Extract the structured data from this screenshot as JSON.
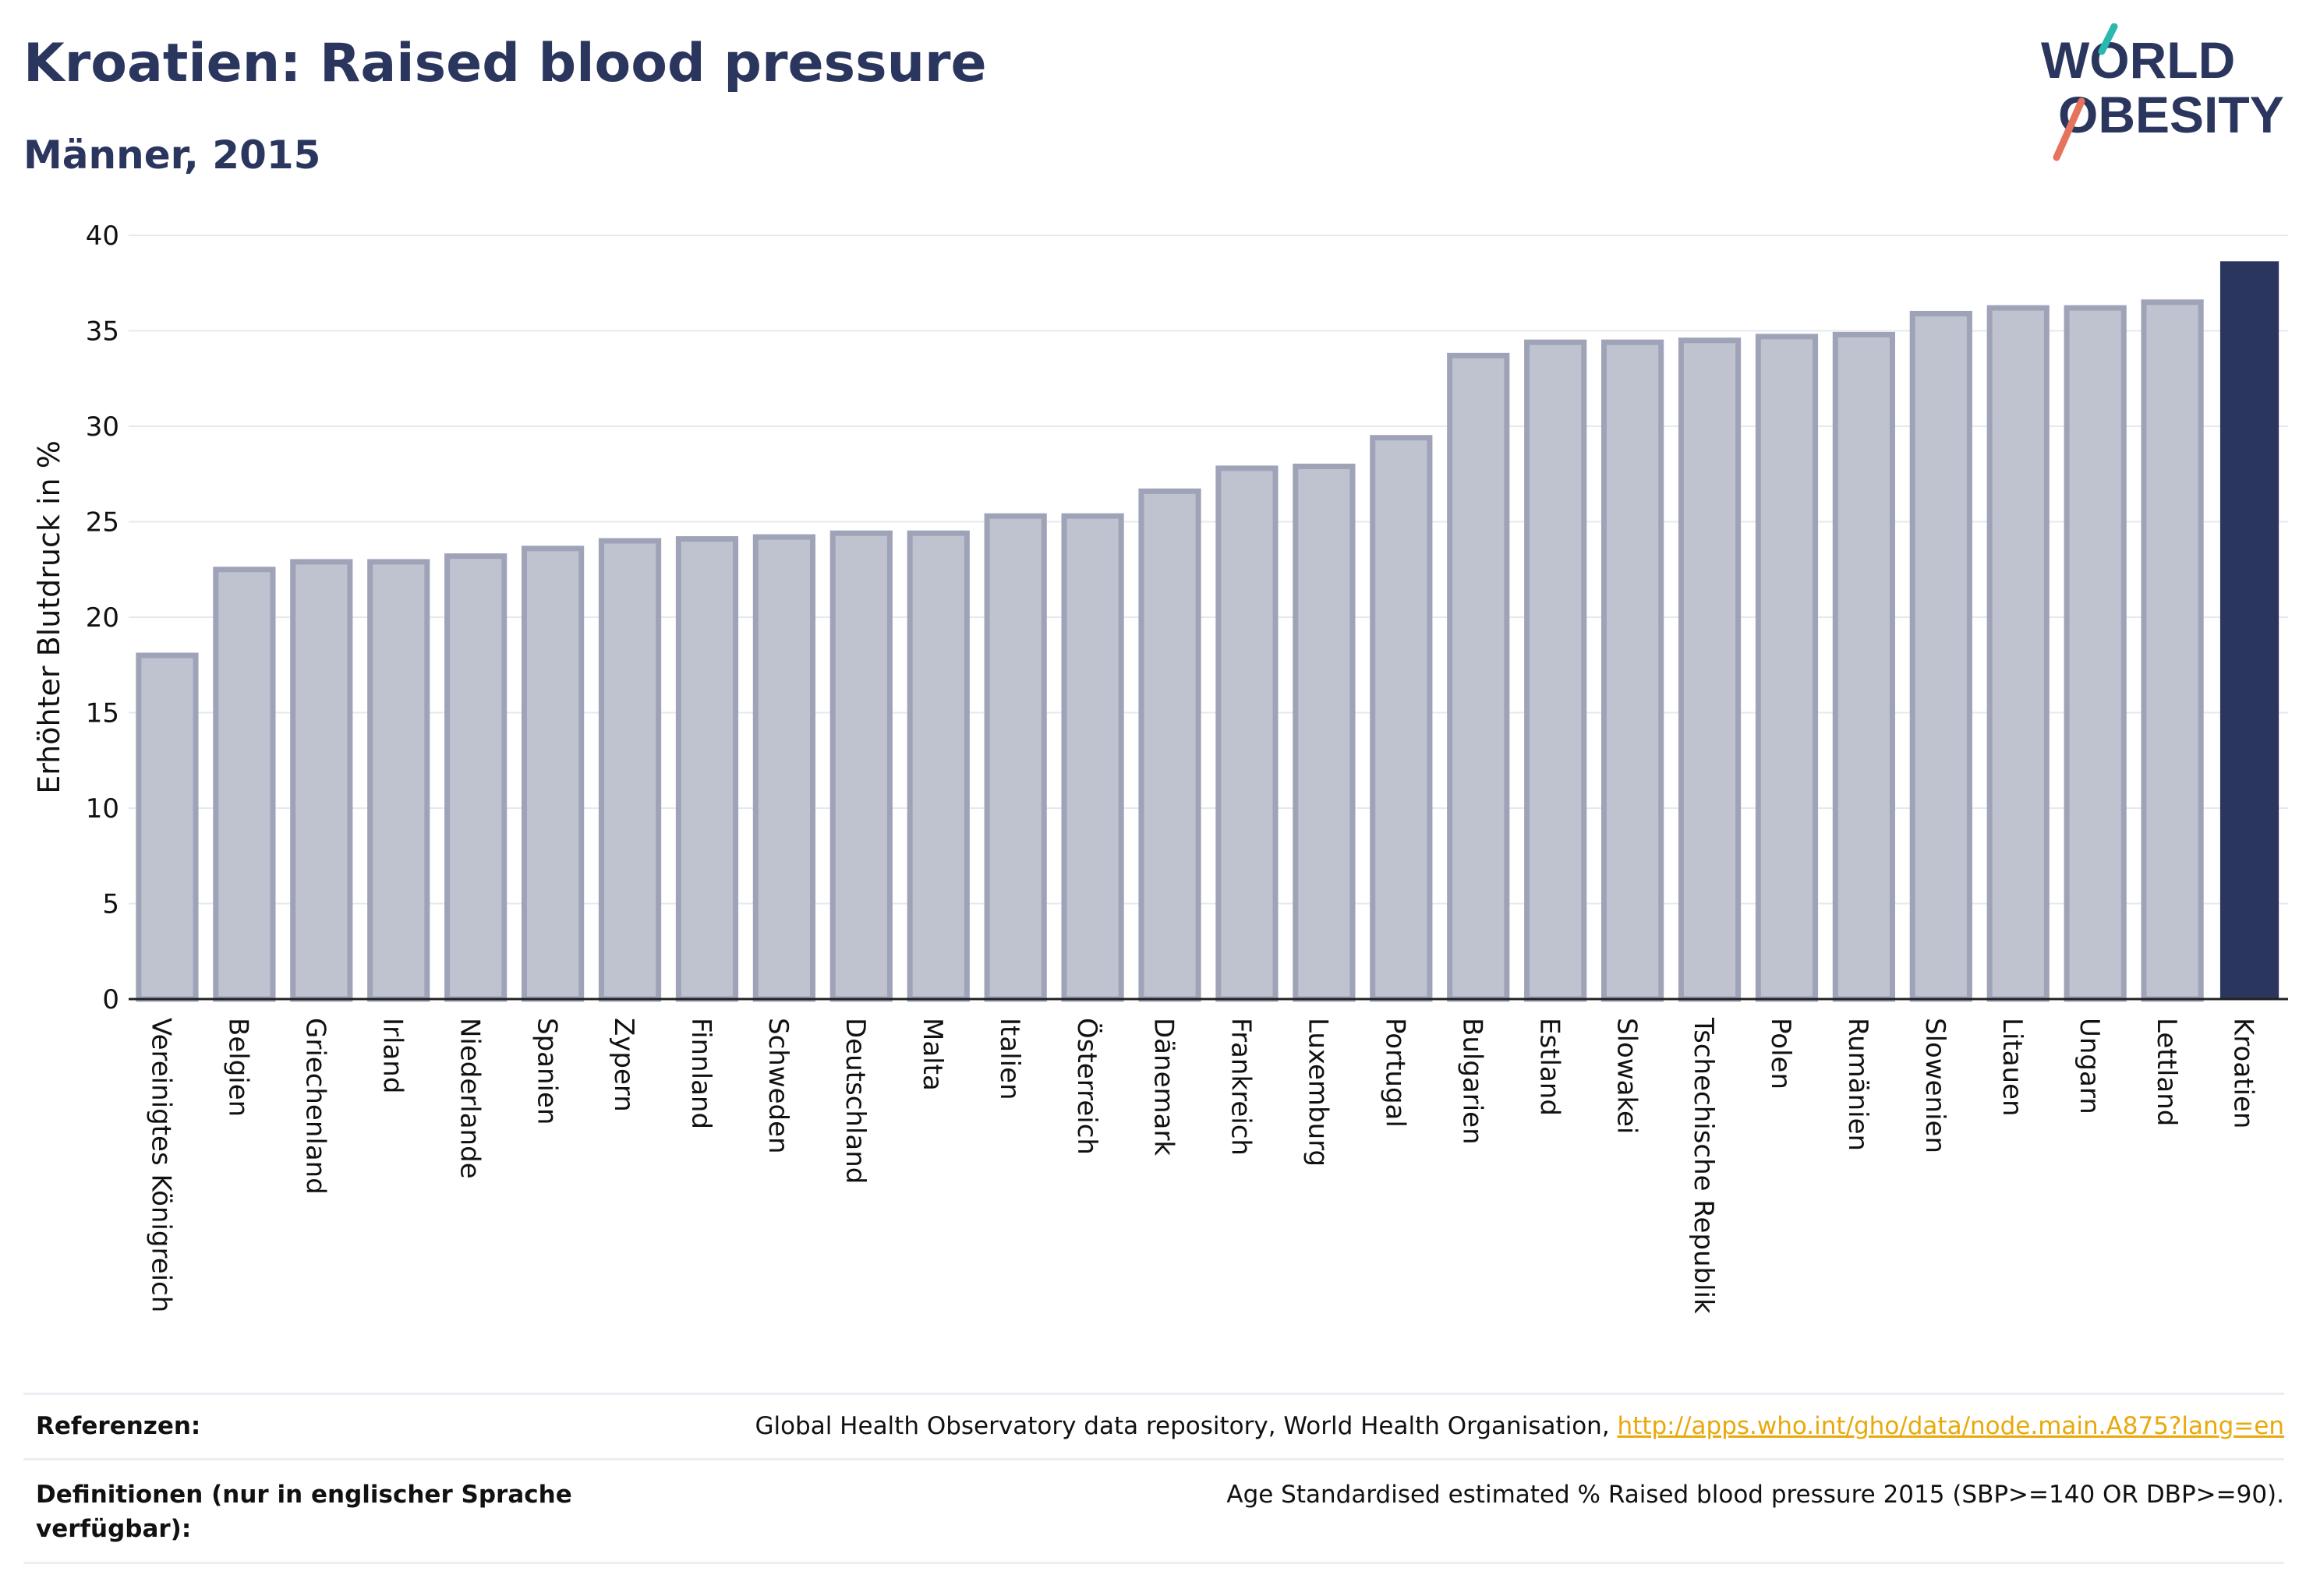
{
  "header": {
    "title": "Kroatien: Raised blood pressure",
    "subtitle": "Männer, 2015"
  },
  "logo": {
    "line1": "WORLD",
    "line2": "OBESITY",
    "slash_colors": [
      "#e6735c",
      "#2ab8b0"
    ]
  },
  "colors": {
    "highlight": "#2b365f",
    "bar_fill": "#bfc2cf",
    "bar_stroke": "#9ea3b8",
    "grid": "#e6e8ef"
  },
  "chart_data": {
    "type": "bar",
    "ylabel": "Erhöhter Blutdruck in %",
    "ylim": [
      0,
      40
    ],
    "yticks": [
      0,
      5,
      10,
      15,
      20,
      25,
      30,
      35,
      40
    ],
    "grid": true,
    "highlight_category": "Kroatien",
    "categories": [
      "Vereinigtes Königreich",
      "Belgien",
      "Griechenland",
      "Irland",
      "Niederlande",
      "Spanien",
      "Zypern",
      "Finnland",
      "Schweden",
      "Deutschland",
      "Malta",
      "Italien",
      "Österreich",
      "Dänemark",
      "Frankreich",
      "Luxemburg",
      "Portugal",
      "Bulgarien",
      "Estland",
      "Slowakei",
      "Tschechische Republik",
      "Polen",
      "Rumänien",
      "Slowenien",
      "Litauen",
      "Ungarn",
      "Lettland",
      "Kroatien"
    ],
    "values": [
      18.0,
      22.5,
      22.9,
      22.9,
      23.2,
      23.6,
      24.0,
      24.1,
      24.2,
      24.4,
      24.4,
      25.3,
      25.3,
      26.6,
      27.8,
      27.9,
      29.4,
      33.7,
      34.4,
      34.4,
      34.5,
      34.7,
      34.8,
      35.9,
      36.2,
      36.2,
      36.5,
      38.6
    ]
  },
  "references": {
    "ref_label": "Referenzen:",
    "ref_text": "Global Health Observatory data repository, World Health Organisation, ",
    "ref_link": "http://apps.who.int/gho/data/node.main.A875?lang=en",
    "def_label_1": "Definitionen (nur in englischer Sprache",
    "def_label_2": "verfügbar):",
    "def_text": "Age Standardised estimated % Raised blood pressure 2015 (SBP>=140 OR DBP>=90)."
  }
}
